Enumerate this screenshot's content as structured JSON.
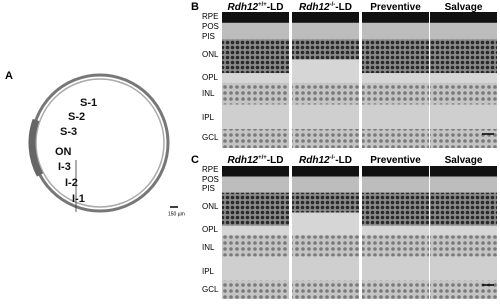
{
  "panel_a": {
    "label": "A",
    "regions": [
      "S-1",
      "S-2",
      "S-3",
      "ON",
      "I-3",
      "I-2",
      "I-1"
    ],
    "scale_bar": "150 µm"
  },
  "panels": [
    {
      "label": "B",
      "columns": [
        {
          "gene": "Rdh12",
          "genotype": "+/+",
          "suffix": "-LD"
        },
        {
          "gene": "Rdh12",
          "genotype": "-/-",
          "suffix": "-LD"
        },
        {
          "text": "Preventive"
        },
        {
          "text": "Salvage"
        }
      ],
      "layers": [
        "RPE",
        "POS",
        "PIS",
        "ONL",
        "OPL",
        "INL",
        "IPL",
        "GCL"
      ]
    },
    {
      "label": "C",
      "columns": [
        {
          "gene": "Rdh12",
          "genotype": "+/+",
          "suffix": "-LD"
        },
        {
          "gene": "Rdh12",
          "genotype": "-/-",
          "suffix": "-LD"
        },
        {
          "text": "Preventive"
        },
        {
          "text": "Salvage"
        }
      ],
      "layers": [
        "RPE",
        "POS",
        "PIS",
        "ONL",
        "OPL",
        "INL",
        "IPL",
        "GCL"
      ]
    }
  ]
}
